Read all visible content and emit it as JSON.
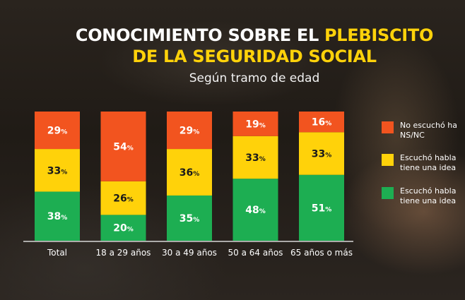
{
  "chart_data": {
    "type": "bar",
    "stacked": true,
    "title_line1_white": "CONOCIMIENTO SOBRE EL ",
    "title_line1_yellow": "PLEBISCITO",
    "title_line2": "DE LA SEGURIDAD SOCIAL",
    "subtitle": "Según tramo de edad",
    "categories": [
      "Total",
      "18 a 29 años",
      "30 a 49 años",
      "50 a 64 años",
      "65 años o más"
    ],
    "series": [
      {
        "name": "Escuchó hablar y tiene una idea",
        "legend_lines": [
          "Escuchó habla",
          "tiene una idea"
        ],
        "color": "#1dae52",
        "label_color": "#ffffff",
        "values": [
          38,
          20,
          35,
          48,
          51
        ]
      },
      {
        "name": "Escuchó hablar y tiene una idea",
        "legend_lines": [
          "Escuchó habla",
          "tiene una idea"
        ],
        "color": "#ffd20a",
        "label_color": "#1a1a1a",
        "values": [
          33,
          26,
          36,
          33,
          33
        ]
      },
      {
        "name": "No escuchó hablar / NS/NC",
        "legend_lines": [
          "No escuchó ha",
          "NS/NC"
        ],
        "color": "#f2541f",
        "label_color": "#ffffff",
        "values": [
          29,
          54,
          29,
          19,
          16
        ]
      }
    ],
    "unit_suffix": "%",
    "ylim": [
      0,
      100
    ]
  }
}
